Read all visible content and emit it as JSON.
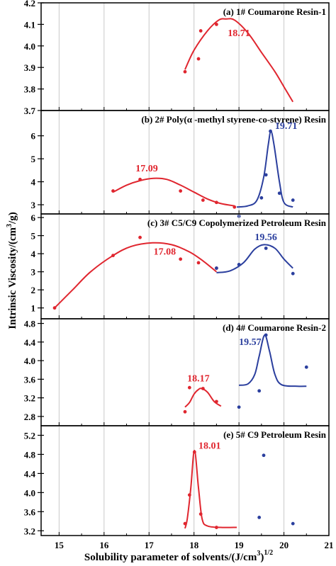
{
  "figure": {
    "ylabel_main": "Intrinsic Viscosity/(cm",
    "ylabel_sup": "3",
    "ylabel_tail": "/g)",
    "xlabel_main": "Solubility parameter of solvents/(J/cm",
    "xlabel_sup": "3",
    "xlabel_tail": ")",
    "xlabel_sup2": "1/2",
    "colors": {
      "red": "#e0262f",
      "blue": "#2b3f9e",
      "grid": "#c8c8c8",
      "axis": "#000000"
    }
  },
  "chart_data": [
    {
      "type": "scatter",
      "title": "(a) 1# Coumarone Resin-1",
      "xlim": [
        14.6,
        21
      ],
      "ylim": [
        3.7,
        4.2
      ],
      "yticks": [
        "3.7",
        "3.8",
        "3.9",
        "4.0",
        "4.1",
        "4.2"
      ],
      "ytick_values": [
        3.7,
        3.8,
        3.9,
        4.0,
        4.1,
        4.2
      ],
      "xticks": [],
      "series": [
        {
          "color": "red",
          "points": [
            [
              17.8,
              3.88
            ],
            [
              18.1,
              3.94
            ],
            [
              18.15,
              4.07
            ],
            [
              18.5,
              4.1
            ]
          ],
          "curve": [
            [
              17.8,
              3.89
            ],
            [
              18.0,
              3.98
            ],
            [
              18.3,
              4.07
            ],
            [
              18.55,
              4.12
            ],
            [
              18.71,
              4.125
            ],
            [
              18.9,
              4.12
            ],
            [
              19.2,
              4.06
            ],
            [
              19.5,
              3.97
            ],
            [
              19.8,
              3.88
            ],
            [
              20.0,
              3.81
            ],
            [
              20.2,
              3.74
            ]
          ]
        }
      ],
      "annotations": [
        {
          "text": "18.71",
          "color": "red",
          "x": 18.75,
          "y": 4.045
        }
      ]
    },
    {
      "type": "scatter",
      "title": "(b) 2# Poly(α -methyl styrene-co-styrene) Resin",
      "xlim": [
        14.6,
        21
      ],
      "ylim": [
        2.6,
        7.1
      ],
      "yticks": [
        "3",
        "4",
        "5",
        "6"
      ],
      "ytick_values": [
        3,
        4,
        5,
        6
      ],
      "xticks": [],
      "series": [
        {
          "color": "red",
          "points": [
            [
              16.2,
              3.6
            ],
            [
              16.8,
              4.1
            ],
            [
              17.7,
              3.6
            ],
            [
              18.2,
              3.2
            ],
            [
              18.5,
              3.1
            ],
            [
              18.9,
              2.9
            ]
          ],
          "curve": [
            [
              16.2,
              3.55
            ],
            [
              16.5,
              3.85
            ],
            [
              16.8,
              4.05
            ],
            [
              17.1,
              4.15
            ],
            [
              17.4,
              4.1
            ],
            [
              17.7,
              3.85
            ],
            [
              18.0,
              3.55
            ],
            [
              18.3,
              3.25
            ],
            [
              18.6,
              3.05
            ],
            [
              18.9,
              2.95
            ]
          ]
        },
        {
          "color": "blue",
          "points": [
            [
              19.0,
              2.5
            ],
            [
              19.5,
              3.3
            ],
            [
              19.6,
              4.3
            ],
            [
              19.7,
              6.2
            ],
            [
              19.9,
              3.5
            ],
            [
              20.2,
              3.2
            ]
          ],
          "curve": [
            [
              18.95,
              2.9
            ],
            [
              19.2,
              2.95
            ],
            [
              19.4,
              3.2
            ],
            [
              19.55,
              4.2
            ],
            [
              19.65,
              5.6
            ],
            [
              19.71,
              6.2
            ],
            [
              19.78,
              5.6
            ],
            [
              19.9,
              4.0
            ],
            [
              20.0,
              3.1
            ],
            [
              20.2,
              2.9
            ]
          ]
        }
      ],
      "annotations": [
        {
          "text": "17.09",
          "color": "red",
          "x": 16.7,
          "y": 4.45
        },
        {
          "text": "19.71",
          "color": "blue",
          "x": 19.8,
          "y": 6.3
        }
      ]
    },
    {
      "type": "scatter",
      "title": "(c) 3# C5/C9 Copolymerized Petroleum Resin",
      "xlim": [
        14.6,
        21
      ],
      "ylim": [
        0.4,
        6.2
      ],
      "yticks": [
        "1",
        "2",
        "3",
        "4",
        "5",
        "6"
      ],
      "ytick_values": [
        1,
        2,
        3,
        4,
        5,
        6
      ],
      "xticks": [],
      "series": [
        {
          "color": "red",
          "points": [
            [
              14.9,
              1.0
            ],
            [
              16.2,
              3.9
            ],
            [
              16.8,
              4.9
            ],
            [
              17.7,
              3.7
            ],
            [
              18.1,
              3.5
            ],
            [
              18.5,
              3.2
            ]
          ],
          "curve": [
            [
              14.9,
              1.0
            ],
            [
              15.3,
              2.0
            ],
            [
              15.7,
              3.0
            ],
            [
              16.2,
              3.9
            ],
            [
              16.6,
              4.4
            ],
            [
              17.08,
              4.6
            ],
            [
              17.5,
              4.5
            ],
            [
              17.9,
              4.1
            ],
            [
              18.2,
              3.6
            ],
            [
              18.5,
              3.0
            ]
          ]
        },
        {
          "color": "blue",
          "points": [
            [
              18.5,
              3.2
            ],
            [
              19.0,
              3.4
            ],
            [
              19.6,
              4.3
            ],
            [
              20.2,
              2.9
            ]
          ],
          "curve": [
            [
              18.5,
              2.95
            ],
            [
              18.8,
              3.05
            ],
            [
              19.1,
              3.5
            ],
            [
              19.35,
              4.25
            ],
            [
              19.56,
              4.5
            ],
            [
              19.8,
              4.3
            ],
            [
              20.0,
              3.7
            ],
            [
              20.2,
              3.2
            ]
          ]
        }
      ],
      "annotations": [
        {
          "text": "17.08",
          "color": "red",
          "x": 17.1,
          "y": 3.95
        },
        {
          "text": "19.56",
          "color": "blue",
          "x": 19.35,
          "y": 4.75
        }
      ]
    },
    {
      "type": "scatter",
      "title": "(d) 4# Coumarone Resin-2",
      "xlim": [
        14.6,
        21
      ],
      "ylim": [
        2.6,
        4.9
      ],
      "yticks": [
        "2.8",
        "3.2",
        "3.6",
        "4.0",
        "4.4",
        "4.8"
      ],
      "ytick_values": [
        2.8,
        3.2,
        3.6,
        4.0,
        4.4,
        4.8
      ],
      "xticks": [],
      "series": [
        {
          "color": "red",
          "points": [
            [
              17.8,
              2.9
            ],
            [
              17.9,
              3.42
            ],
            [
              18.2,
              3.4
            ],
            [
              18.5,
              3.12
            ]
          ],
          "curve": [
            [
              17.8,
              3.0
            ],
            [
              17.9,
              3.1
            ],
            [
              18.0,
              3.28
            ],
            [
              18.1,
              3.38
            ],
            [
              18.17,
              3.4
            ],
            [
              18.3,
              3.32
            ],
            [
              18.45,
              3.12
            ],
            [
              18.6,
              3.02
            ]
          ]
        },
        {
          "color": "blue",
          "points": [
            [
              19.0,
              3.0
            ],
            [
              19.45,
              3.35
            ],
            [
              19.6,
              4.55
            ],
            [
              20.5,
              3.86
            ]
          ],
          "curve": [
            [
              19.0,
              3.47
            ],
            [
              19.2,
              3.5
            ],
            [
              19.35,
              3.7
            ],
            [
              19.45,
              4.1
            ],
            [
              19.57,
              4.55
            ],
            [
              19.68,
              4.2
            ],
            [
              19.8,
              3.7
            ],
            [
              19.95,
              3.48
            ],
            [
              20.3,
              3.45
            ],
            [
              20.5,
              3.45
            ]
          ]
        }
      ],
      "annotations": [
        {
          "text": "18.17",
          "color": "red",
          "x": 17.85,
          "y": 3.55
        },
        {
          "text": "19.57",
          "color": "blue",
          "x": 19.0,
          "y": 4.34
        }
      ]
    },
    {
      "type": "scatter",
      "title": "(e) 5# C9 Petroleum Resin",
      "xlim": [
        14.6,
        21
      ],
      "ylim": [
        3.1,
        5.4
      ],
      "yticks": [
        "3.2",
        "3.6",
        "4.0",
        "4.4",
        "4.8",
        "5.2"
      ],
      "ytick_values": [
        3.2,
        3.6,
        4.0,
        4.4,
        4.8,
        5.2
      ],
      "xticks": [
        "15",
        "16",
        "17",
        "18",
        "19",
        "20",
        "21"
      ],
      "xtick_values": [
        15,
        16,
        17,
        18,
        19,
        20,
        21
      ],
      "series": [
        {
          "color": "red",
          "points": [
            [
              17.8,
              3.35
            ],
            [
              17.9,
              3.95
            ],
            [
              18.01,
              4.85
            ],
            [
              18.15,
              3.55
            ],
            [
              18.5,
              3.27
            ]
          ],
          "curve": [
            [
              17.8,
              3.25
            ],
            [
              17.85,
              3.45
            ],
            [
              17.93,
              4.1
            ],
            [
              18.01,
              4.88
            ],
            [
              18.1,
              4.1
            ],
            [
              18.18,
              3.45
            ],
            [
              18.3,
              3.3
            ],
            [
              18.6,
              3.27
            ],
            [
              18.95,
              3.27
            ]
          ]
        },
        {
          "color": "blue",
          "points": [
            [
              19.45,
              3.48
            ],
            [
              19.55,
              4.78
            ],
            [
              20.2,
              3.35
            ]
          ],
          "curve": []
        }
      ],
      "annotations": [
        {
          "text": "18.01",
          "color": "red",
          "x": 18.1,
          "y": 4.92
        }
      ]
    }
  ]
}
